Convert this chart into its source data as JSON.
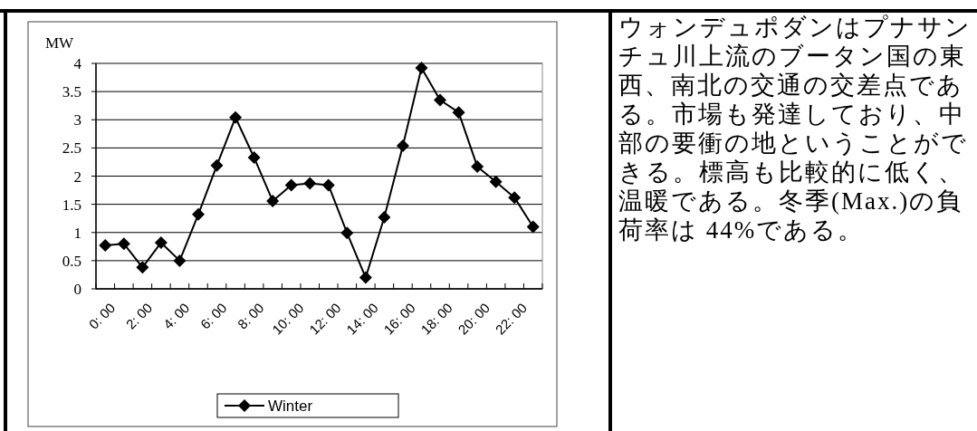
{
  "chart_data": {
    "type": "line",
    "ylabel": "MW",
    "categories": [
      "0: 00",
      null,
      "2: 00",
      null,
      "4: 00",
      null,
      "6: 00",
      null,
      "8: 00",
      null,
      "10: 00",
      null,
      "12: 00",
      null,
      "14: 00",
      null,
      "16: 00",
      null,
      "18: 00",
      null,
      "20: 00",
      null,
      "22: 00",
      null
    ],
    "series": [
      {
        "name": "Winter",
        "color": "#000000",
        "values": [
          0.77,
          0.8,
          0.38,
          0.82,
          0.5,
          1.32,
          2.19,
          3.04,
          2.33,
          1.56,
          1.84,
          1.87,
          1.84,
          0.99,
          0.2,
          1.27,
          2.54,
          3.92,
          3.35,
          3.13,
          2.17,
          1.9,
          1.62,
          1.1
        ]
      }
    ],
    "ylim": [
      0,
      4
    ],
    "yticks": [
      0,
      0.5,
      1,
      1.5,
      2,
      2.5,
      3,
      3.5,
      4
    ],
    "grid": "y",
    "legend": "bottom",
    "marker": "diamond",
    "line_style": "solid",
    "annotations": [
      "ウォンデュポダンはプナサンチュ川上流のブータン国の東西、南北の交通の交差点である。市場も発達しており、中部の要衝の地ということができる。標高も比較的に低く、温暖である。冬季(Max.)の負荷率は 44%である。"
    ]
  }
}
